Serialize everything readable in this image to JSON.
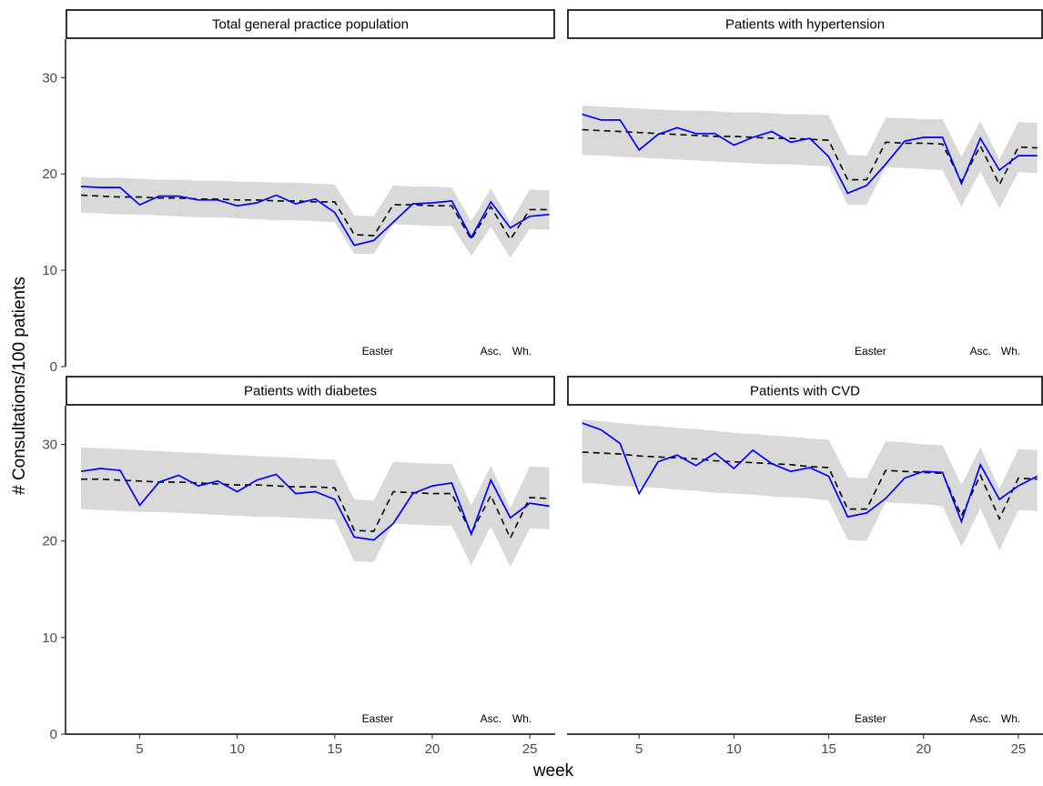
{
  "chart_data": {
    "type": "line",
    "xlabel": "week",
    "ylabel": "# Consultations/100 patients",
    "ylim": [
      0,
      34
    ],
    "xlim": [
      1.2,
      26.3
    ],
    "x_ticks": [
      5,
      10,
      15,
      20,
      25
    ],
    "y_ticks": [
      0,
      10,
      20,
      30
    ],
    "grid": false,
    "holiday_labels": [
      {
        "text": "Easter",
        "week": 17.2
      },
      {
        "text": "Asc.",
        "week": 23
      },
      {
        "text": "Wh.",
        "week": 24.6
      }
    ],
    "colors": {
      "observed": "#0000ff",
      "expected": "#000000",
      "band": "#d9d9d9"
    },
    "panels": [
      {
        "title": "Total general practice population",
        "observed": [
          18.7,
          18.6,
          18.6,
          16.8,
          17.7,
          17.7,
          17.3,
          17.3,
          16.7,
          17.0,
          17.8,
          16.9,
          17.4,
          16.0,
          12.6,
          13.1,
          15.0,
          16.9,
          17.0,
          17.2,
          13.4,
          17.1,
          14.4,
          15.6,
          15.8
        ],
        "expected": [
          17.8,
          17.7,
          17.6,
          17.6,
          17.5,
          17.5,
          17.4,
          17.4,
          17.3,
          17.3,
          17.2,
          17.2,
          17.1,
          17.1,
          13.7,
          13.6,
          16.8,
          16.8,
          16.7,
          16.7,
          13.2,
          16.6,
          13.2,
          16.3,
          16.3
        ],
        "lower": [
          16.0,
          15.9,
          15.8,
          15.8,
          15.7,
          15.6,
          15.5,
          15.5,
          15.4,
          15.3,
          15.2,
          15.2,
          15.1,
          15.0,
          11.7,
          11.7,
          14.8,
          14.7,
          14.6,
          14.6,
          11.5,
          14.5,
          11.3,
          14.3,
          14.2
        ],
        "upper": [
          19.7,
          19.6,
          19.6,
          19.5,
          19.4,
          19.4,
          19.3,
          19.3,
          19.2,
          19.2,
          19.1,
          19.1,
          19.0,
          18.9,
          15.7,
          15.6,
          18.8,
          18.7,
          18.7,
          18.6,
          15.1,
          18.5,
          15.0,
          18.4,
          18.3
        ]
      },
      {
        "title": "Patients with hypertension",
        "observed": [
          26.2,
          25.6,
          25.6,
          22.5,
          24.1,
          24.8,
          24.2,
          24.2,
          23.0,
          23.8,
          24.4,
          23.3,
          23.7,
          21.8,
          18.0,
          18.8,
          21.0,
          23.4,
          23.8,
          23.8,
          19.0,
          23.7,
          20.4,
          21.9,
          21.9
        ],
        "expected": [
          24.6,
          24.5,
          24.4,
          24.3,
          24.2,
          24.1,
          24.0,
          23.9,
          23.9,
          23.8,
          23.7,
          23.7,
          23.6,
          23.5,
          19.4,
          19.4,
          23.3,
          23.2,
          23.2,
          23.1,
          19.2,
          22.9,
          18.9,
          22.8,
          22.7
        ],
        "lower": [
          22.0,
          21.9,
          21.8,
          21.7,
          21.6,
          21.5,
          21.4,
          21.3,
          21.2,
          21.1,
          21.0,
          21.0,
          20.9,
          20.8,
          16.8,
          16.8,
          20.7,
          20.6,
          20.5,
          20.4,
          16.6,
          20.3,
          16.4,
          20.2,
          20.1
        ],
        "upper": [
          27.1,
          27.0,
          26.9,
          26.8,
          26.7,
          26.6,
          26.6,
          26.5,
          26.4,
          26.4,
          26.3,
          26.2,
          26.2,
          26.1,
          22.0,
          21.9,
          25.8,
          25.8,
          25.7,
          25.7,
          21.8,
          25.5,
          21.5,
          25.4,
          25.3
        ]
      },
      {
        "title": "Patients with diabetes",
        "observed": [
          27.2,
          27.5,
          27.3,
          23.7,
          26.1,
          26.8,
          25.7,
          26.2,
          25.1,
          26.3,
          26.9,
          24.9,
          25.1,
          24.3,
          20.4,
          20.1,
          21.8,
          24.9,
          25.7,
          26.0,
          20.7,
          26.3,
          22.4,
          23.9,
          23.6
        ],
        "expected": [
          26.4,
          26.4,
          26.3,
          26.2,
          26.1,
          26.1,
          26.0,
          25.9,
          25.8,
          25.8,
          25.7,
          25.6,
          25.6,
          25.5,
          21.1,
          21.0,
          25.1,
          25.0,
          24.9,
          24.9,
          20.8,
          24.7,
          20.3,
          24.5,
          24.4
        ],
        "lower": [
          23.3,
          23.2,
          23.1,
          23.0,
          23.0,
          22.9,
          22.8,
          22.7,
          22.6,
          22.5,
          22.5,
          22.4,
          22.3,
          22.2,
          17.9,
          17.8,
          21.8,
          21.7,
          21.6,
          21.6,
          17.5,
          21.5,
          17.3,
          21.3,
          21.2
        ],
        "upper": [
          29.7,
          29.6,
          29.5,
          29.4,
          29.3,
          29.2,
          29.1,
          29.0,
          28.9,
          28.8,
          28.7,
          28.6,
          28.5,
          28.4,
          24.3,
          24.2,
          28.2,
          28.1,
          28.0,
          28.0,
          23.7,
          27.8,
          23.4,
          27.7,
          27.6
        ]
      },
      {
        "title": "Patients with CVD",
        "observed": [
          32.2,
          31.5,
          30.1,
          24.9,
          28.2,
          28.9,
          27.8,
          29.1,
          27.5,
          29.4,
          28.0,
          27.2,
          27.6,
          26.7,
          22.5,
          22.9,
          24.4,
          26.5,
          27.2,
          27.1,
          22.0,
          27.9,
          24.3,
          25.7,
          26.7
        ],
        "expected": [
          29.2,
          29.1,
          29.0,
          28.8,
          28.7,
          28.6,
          28.5,
          28.3,
          28.2,
          28.1,
          28.0,
          27.9,
          27.7,
          27.6,
          23.3,
          23.3,
          27.3,
          27.2,
          27.1,
          27.0,
          22.6,
          26.8,
          22.3,
          26.5,
          26.4
        ],
        "lower": [
          26.0,
          25.9,
          25.7,
          25.6,
          25.5,
          25.3,
          25.2,
          25.0,
          24.9,
          24.8,
          24.6,
          24.5,
          24.4,
          24.2,
          20.1,
          20.0,
          24.0,
          23.9,
          23.8,
          23.6,
          19.4,
          23.4,
          19.0,
          23.2,
          23.1
        ],
        "upper": [
          32.6,
          32.4,
          32.2,
          32.0,
          31.9,
          31.7,
          31.6,
          31.4,
          31.2,
          31.1,
          30.9,
          30.8,
          30.6,
          30.5,
          26.6,
          26.5,
          30.3,
          30.2,
          30.0,
          29.9,
          25.8,
          29.7,
          25.4,
          29.5,
          29.4
        ]
      }
    ]
  }
}
